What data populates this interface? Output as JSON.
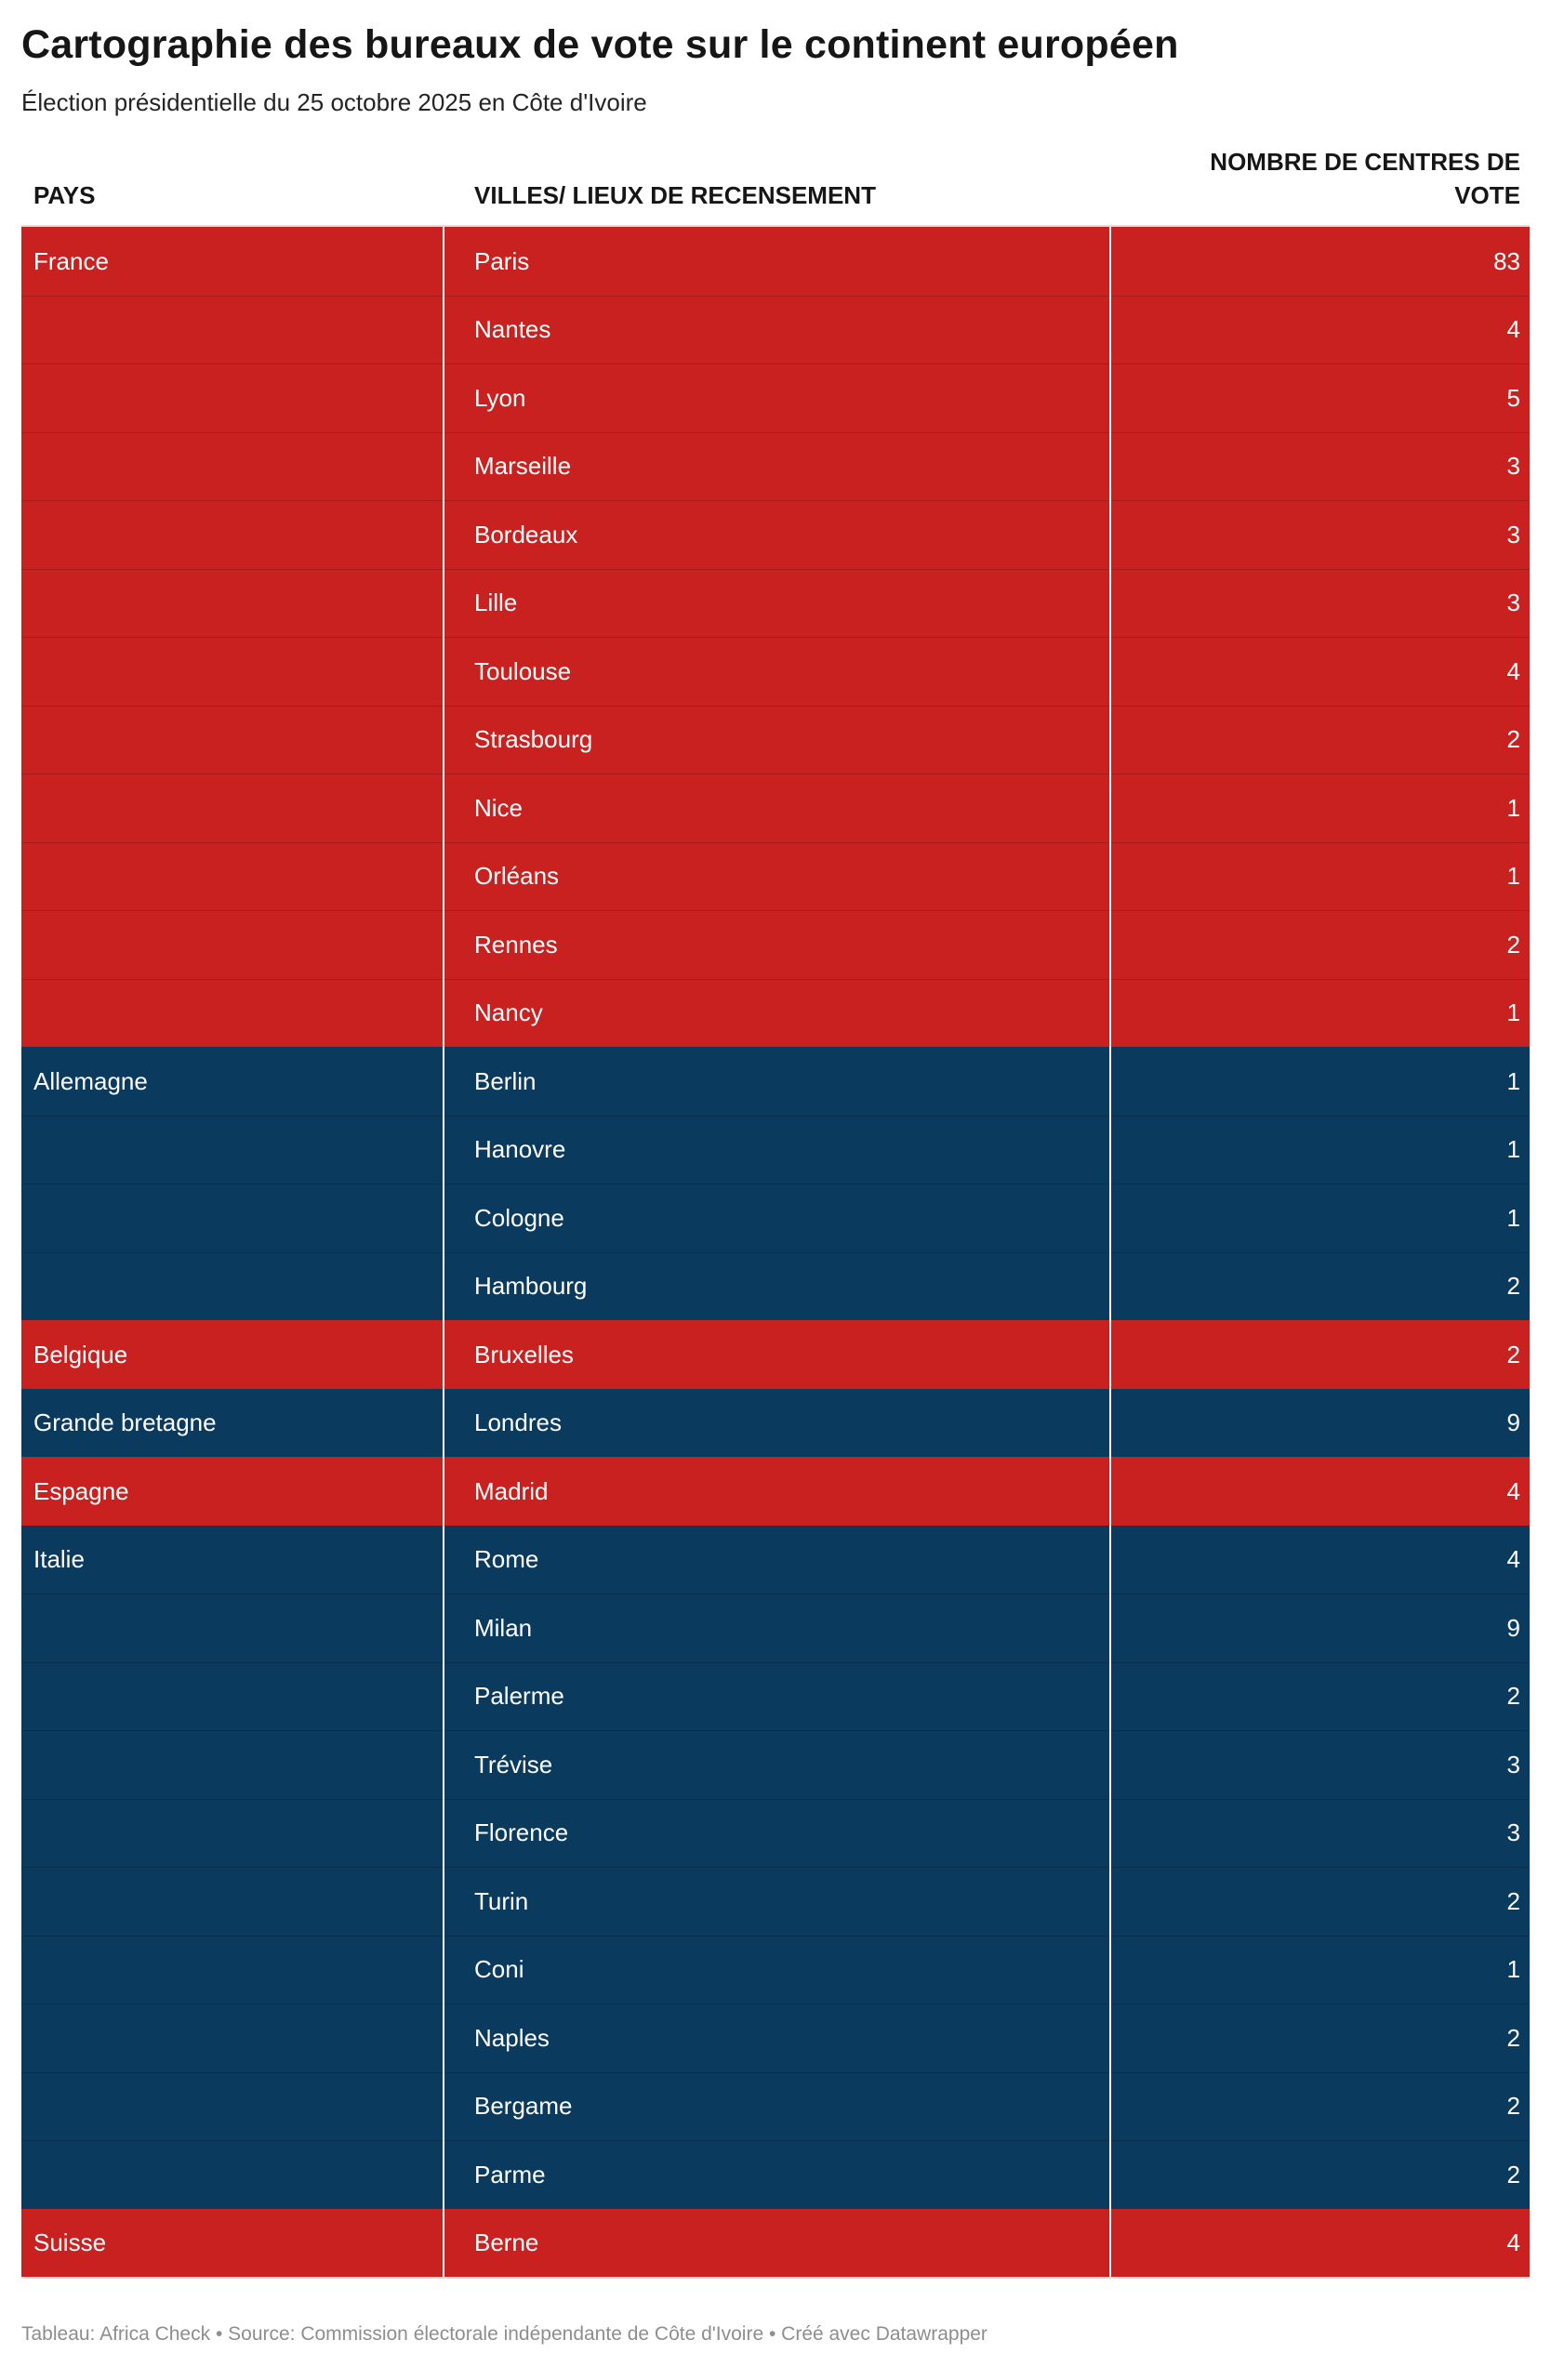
{
  "chart_data": {
    "type": "table",
    "title": "Cartographie des bureaux de vote sur le continent européen",
    "subtitle": "Élection présidentielle du 25 octobre 2025 en Côte d'Ivoire",
    "columns": [
      "PAYS",
      "VILLES/ LIEUX DE RECENSEMENT",
      "NOMBRE DE CENTRES DE VOTE"
    ],
    "row_colors": {
      "red": "#c9211f",
      "blue": "#0a3a5e"
    },
    "groups": [
      {
        "country": "France",
        "color": "red",
        "rows": [
          {
            "city": "Paris",
            "centres": 83
          },
          {
            "city": "Nantes",
            "centres": 4
          },
          {
            "city": "Lyon",
            "centres": 5
          },
          {
            "city": "Marseille",
            "centres": 3
          },
          {
            "city": "Bordeaux",
            "centres": 3
          },
          {
            "city": "Lille",
            "centres": 3
          },
          {
            "city": "Toulouse",
            "centres": 4
          },
          {
            "city": "Strasbourg",
            "centres": 2
          },
          {
            "city": "Nice",
            "centres": 1
          },
          {
            "city": "Orléans",
            "centres": 1
          },
          {
            "city": "Rennes",
            "centres": 2
          },
          {
            "city": "Nancy",
            "centres": 1
          }
        ]
      },
      {
        "country": "Allemagne",
        "color": "blue",
        "rows": [
          {
            "city": "Berlin",
            "centres": 1
          },
          {
            "city": "Hanovre",
            "centres": 1
          },
          {
            "city": "Cologne",
            "centres": 1
          },
          {
            "city": "Hambourg",
            "centres": 2
          }
        ]
      },
      {
        "country": "Belgique",
        "color": "red",
        "rows": [
          {
            "city": "Bruxelles",
            "centres": 2
          }
        ]
      },
      {
        "country": "Grande bretagne",
        "color": "blue",
        "rows": [
          {
            "city": "Londres",
            "centres": 9
          }
        ]
      },
      {
        "country": "Espagne",
        "color": "red",
        "rows": [
          {
            "city": "Madrid",
            "centres": 4
          }
        ]
      },
      {
        "country": "Italie",
        "color": "blue",
        "rows": [
          {
            "city": "Rome",
            "centres": 4
          },
          {
            "city": "Milan",
            "centres": 9
          },
          {
            "city": "Palerme",
            "centres": 2
          },
          {
            "city": "Trévise",
            "centres": 3
          },
          {
            "city": "Florence",
            "centres": 3
          },
          {
            "city": "Turin",
            "centres": 2
          },
          {
            "city": "Coni",
            "centres": 1
          },
          {
            "city": "Naples",
            "centres": 2
          },
          {
            "city": "Bergame",
            "centres": 2
          },
          {
            "city": "Parme",
            "centres": 2
          }
        ]
      },
      {
        "country": "Suisse",
        "color": "red",
        "rows": [
          {
            "city": "Berne",
            "centres": 4
          }
        ]
      }
    ]
  },
  "footer": {
    "text": "Tableau: Africa Check • Source: Commission électorale indépendante de Côte d'Ivoire • Créé avec Datawrapper"
  }
}
